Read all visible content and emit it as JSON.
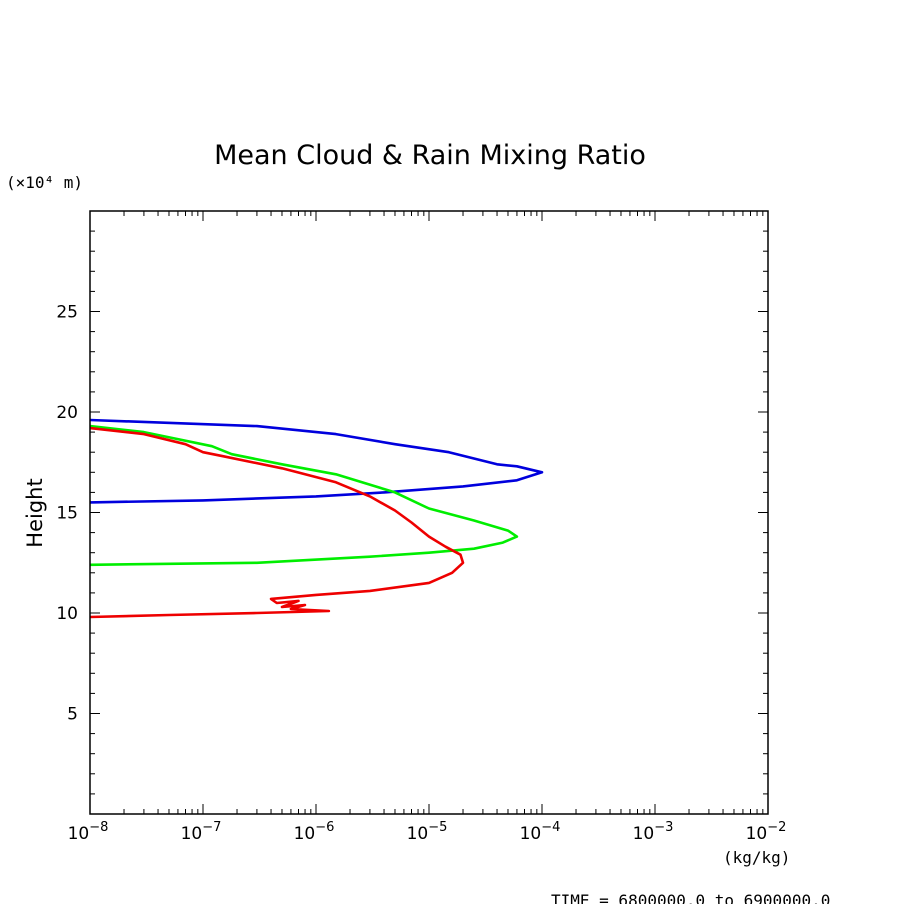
{
  "chart_data": {
    "type": "line",
    "title": "Mean Cloud & Rain Mixing Ratio",
    "ylabel": "Height",
    "y_unit": "(×10⁴ m)",
    "x_unit": "(kg/kg)",
    "footer": "TIME = 6800000.0 to 6900000.0",
    "x_scale": "log",
    "xlim": [
      1e-08,
      0.01
    ],
    "ylim": [
      0,
      30
    ],
    "x_ticks": [
      {
        "value": 1e-08,
        "base": "10",
        "exp": "−8"
      },
      {
        "value": 1e-07,
        "base": "10",
        "exp": "−7"
      },
      {
        "value": 1e-06,
        "base": "10",
        "exp": "−6"
      },
      {
        "value": 1e-05,
        "base": "10",
        "exp": "−5"
      },
      {
        "value": 0.0001,
        "base": "10",
        "exp": "−4"
      },
      {
        "value": 0.001,
        "base": "10",
        "exp": "−3"
      },
      {
        "value": 0.01,
        "base": "10",
        "exp": "−2"
      }
    ],
    "y_ticks": [
      "5",
      "10",
      "15",
      "20",
      "25"
    ],
    "series": [
      {
        "color": "#0000dd",
        "points": [
          [
            1e-08,
            19.6
          ],
          [
            3e-07,
            19.3
          ],
          [
            1.5e-06,
            18.9
          ],
          [
            5e-06,
            18.4
          ],
          [
            1.5e-05,
            18.0
          ],
          [
            4e-05,
            17.4
          ],
          [
            6e-05,
            17.3
          ],
          [
            0.0001,
            17.0
          ],
          [
            6e-05,
            16.6
          ],
          [
            2e-05,
            16.3
          ],
          [
            4e-06,
            16.0
          ],
          [
            1e-06,
            15.8
          ],
          [
            1e-07,
            15.6
          ],
          [
            1e-08,
            15.5
          ]
        ]
      },
      {
        "color": "#00ee00",
        "points": [
          [
            1e-08,
            19.3
          ],
          [
            3e-08,
            19.0
          ],
          [
            1.2e-07,
            18.3
          ],
          [
            1.8e-07,
            17.9
          ],
          [
            5e-07,
            17.4
          ],
          [
            1.5e-06,
            16.9
          ],
          [
            5e-06,
            16.0
          ],
          [
            1e-05,
            15.2
          ],
          [
            2.5e-05,
            14.6
          ],
          [
            5e-05,
            14.1
          ],
          [
            6e-05,
            13.8
          ],
          [
            4.5e-05,
            13.5
          ],
          [
            2.5e-05,
            13.2
          ],
          [
            1e-05,
            13.0
          ],
          [
            3e-06,
            12.8
          ],
          [
            3e-07,
            12.5
          ],
          [
            1e-08,
            12.4
          ]
        ]
      },
      {
        "color": "#ee0000",
        "points": [
          [
            1e-08,
            19.2
          ],
          [
            3e-08,
            18.9
          ],
          [
            7e-08,
            18.4
          ],
          [
            1e-07,
            18.0
          ],
          [
            1.5e-07,
            17.8
          ],
          [
            5e-07,
            17.2
          ],
          [
            1.5e-06,
            16.5
          ],
          [
            3e-06,
            15.8
          ],
          [
            5e-06,
            15.1
          ],
          [
            7e-06,
            14.5
          ],
          [
            1e-05,
            13.8
          ],
          [
            1.4e-05,
            13.3
          ],
          [
            1.9e-05,
            12.9
          ],
          [
            2e-05,
            12.5
          ],
          [
            1.6e-05,
            12.0
          ],
          [
            1e-05,
            11.5
          ],
          [
            3e-06,
            11.1
          ],
          [
            1e-06,
            10.9
          ],
          [
            4e-07,
            10.7
          ],
          [
            4.5e-07,
            10.5
          ],
          [
            7e-07,
            10.6
          ],
          [
            5e-07,
            10.3
          ],
          [
            8e-07,
            10.4
          ],
          [
            6e-07,
            10.2
          ],
          [
            1.3e-06,
            10.1
          ],
          [
            3e-07,
            10.0
          ],
          [
            5e-08,
            9.9
          ],
          [
            1e-08,
            9.8
          ]
        ]
      }
    ]
  }
}
